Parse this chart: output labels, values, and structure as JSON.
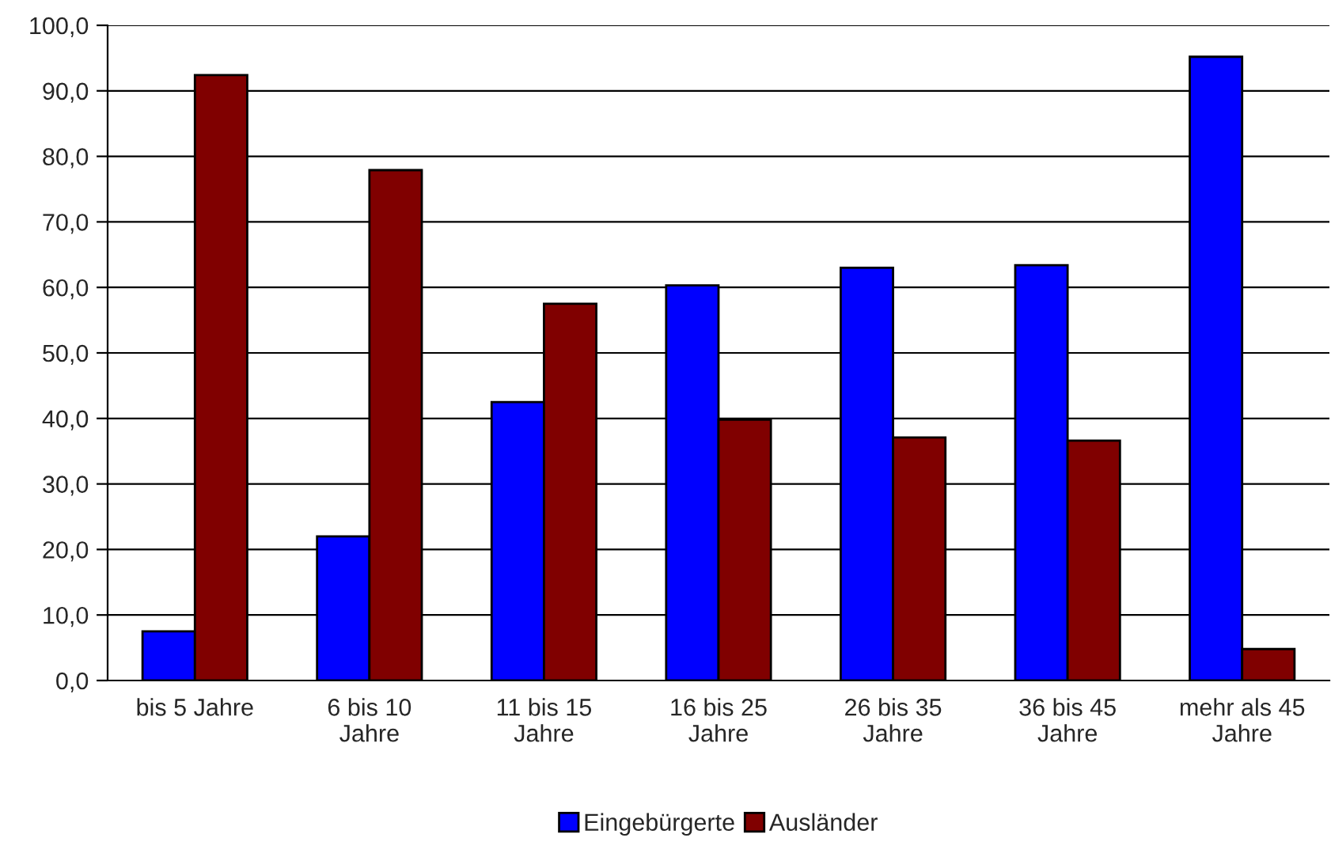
{
  "chart_data": {
    "type": "bar",
    "categories": [
      "bis 5 Jahre",
      "6 bis 10\nJahre",
      "11 bis 15\nJahre",
      "16 bis 25\nJahre",
      "26 bis 35\nJahre",
      "36 bis 45\nJahre",
      "mehr als 45\nJahre"
    ],
    "series": [
      {
        "name": "Eingebürgerte",
        "color": "#0000ff",
        "values": [
          7.5,
          22.0,
          42.5,
          60.3,
          63.0,
          63.4,
          95.2
        ]
      },
      {
        "name": "Ausländer",
        "color": "#800000",
        "values": [
          92.4,
          77.9,
          57.5,
          39.8,
          37.1,
          36.6,
          4.8
        ]
      }
    ],
    "ylim": [
      0,
      100
    ],
    "yticks": [
      {
        "value": 0,
        "label": "0,0"
      },
      {
        "value": 10,
        "label": "10,0"
      },
      {
        "value": 20,
        "label": "20,0"
      },
      {
        "value": 30,
        "label": "30,0"
      },
      {
        "value": 40,
        "label": "40,0"
      },
      {
        "value": 50,
        "label": "50,0"
      },
      {
        "value": 60,
        "label": "60,0"
      },
      {
        "value": 70,
        "label": "70,0"
      },
      {
        "value": 80,
        "label": "80,0"
      },
      {
        "value": 90,
        "label": "90,0"
      },
      {
        "value": 100,
        "label": "100,0"
      }
    ],
    "grid": "y",
    "legend": "bottom"
  }
}
